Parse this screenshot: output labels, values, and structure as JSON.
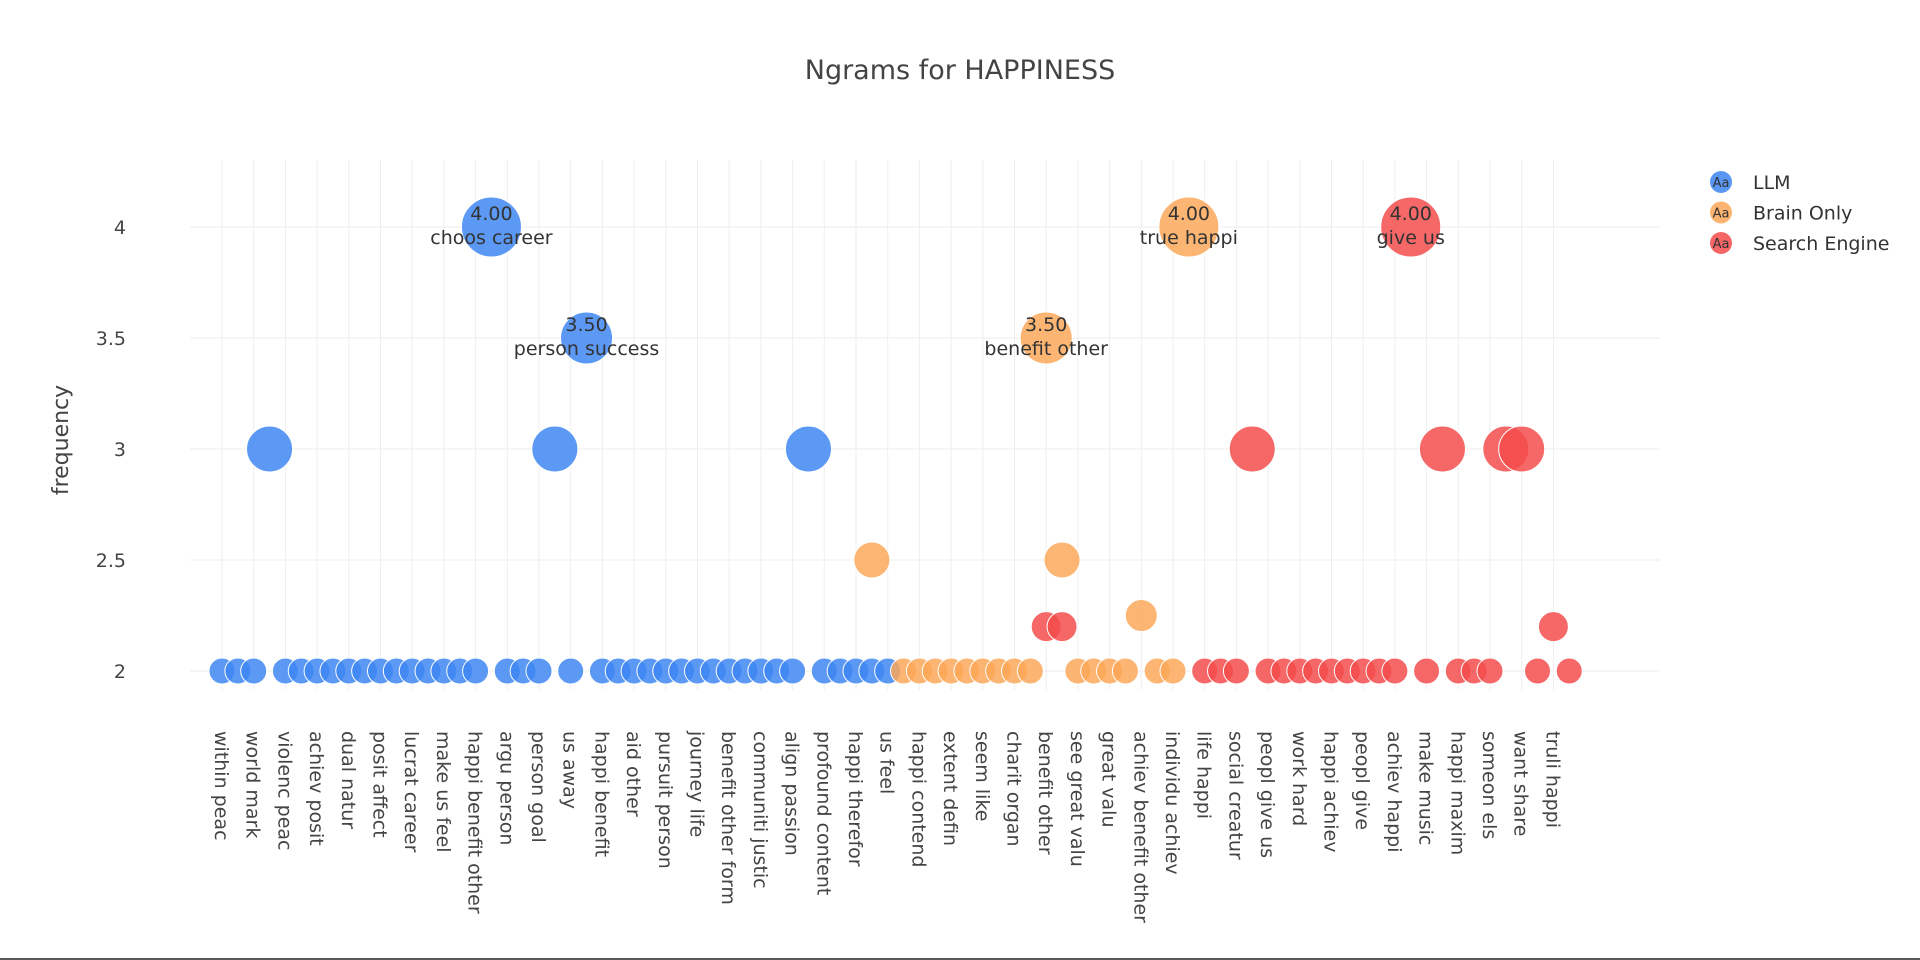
{
  "chart_data": {
    "type": "scatter",
    "title": "Ngrams for HAPPINESS",
    "xlabel": "",
    "ylabel": "frequency",
    "ylim": [
      1.8,
      4.3
    ],
    "yticks": [
      2,
      2.5,
      3,
      3.5,
      4
    ],
    "ytick_labels": [
      "2",
      "2.5",
      "3",
      "3.5",
      "4"
    ],
    "legend_position": "top-right",
    "legend_symbol": "Aa",
    "categories": [
      "within peac",
      "world mark",
      "violenc peac",
      "achiev posit",
      "dual natur",
      "posit affect",
      "lucrat career",
      "make us feel",
      "happi benefit other",
      "argu person",
      "person goal",
      "us away",
      "happi benefit",
      "aid other",
      "pursuit person",
      "journey life",
      "benefit other form",
      "communiti justic",
      "align passion",
      "profound content",
      "happi therefor",
      "us feel",
      "happi contend",
      "extent defin",
      "seem like",
      "charit organ",
      "benefit other",
      "see great valu",
      "great valu",
      "achiev benefit other",
      "individu achiev",
      "life happi",
      "social creatur",
      "peopl give us",
      "work hard",
      "happi achiev",
      "peopl give",
      "achiev happi",
      "make music",
      "happi maxim",
      "someon els",
      "want share",
      "truli happi"
    ],
    "series": [
      {
        "name": "LLM",
        "color": "#3d85f2",
        "points": [
          {
            "x": 0,
            "y": 2
          },
          {
            "x": 0.5,
            "y": 2
          },
          {
            "x": 1,
            "y": 2
          },
          {
            "x": 1.5,
            "y": 3
          },
          {
            "x": 2,
            "y": 2
          },
          {
            "x": 2.5,
            "y": 2
          },
          {
            "x": 3,
            "y": 2
          },
          {
            "x": 3.5,
            "y": 2
          },
          {
            "x": 4,
            "y": 2
          },
          {
            "x": 4.5,
            "y": 2
          },
          {
            "x": 5,
            "y": 2
          },
          {
            "x": 5.5,
            "y": 2
          },
          {
            "x": 6,
            "y": 2
          },
          {
            "x": 6.5,
            "y": 2
          },
          {
            "x": 7,
            "y": 2
          },
          {
            "x": 7.5,
            "y": 2
          },
          {
            "x": 8,
            "y": 2
          },
          {
            "x": 8.5,
            "y": 4,
            "label": "4.00",
            "name": "choos career"
          },
          {
            "x": 9,
            "y": 2
          },
          {
            "x": 9.5,
            "y": 2
          },
          {
            "x": 10,
            "y": 2
          },
          {
            "x": 10.5,
            "y": 3
          },
          {
            "x": 11,
            "y": 2
          },
          {
            "x": 11.5,
            "y": 3.5,
            "label": "3.50",
            "name": "person success"
          },
          {
            "x": 12,
            "y": 2
          },
          {
            "x": 12.5,
            "y": 2
          },
          {
            "x": 13,
            "y": 2
          },
          {
            "x": 13.5,
            "y": 2
          },
          {
            "x": 14,
            "y": 2
          },
          {
            "x": 14.5,
            "y": 2
          },
          {
            "x": 15,
            "y": 2
          },
          {
            "x": 15.5,
            "y": 2
          },
          {
            "x": 16,
            "y": 2
          },
          {
            "x": 16.5,
            "y": 2
          },
          {
            "x": 17,
            "y": 2
          },
          {
            "x": 17.5,
            "y": 2
          },
          {
            "x": 18,
            "y": 2
          },
          {
            "x": 18.5,
            "y": 3
          },
          {
            "x": 19,
            "y": 2
          },
          {
            "x": 19.5,
            "y": 2
          },
          {
            "x": 20,
            "y": 2
          },
          {
            "x": 20.5,
            "y": 2
          },
          {
            "x": 21,
            "y": 2
          }
        ]
      },
      {
        "name": "Brain Only",
        "color": "#fba757",
        "points": [
          {
            "x": 20.5,
            "y": 2.5
          },
          {
            "x": 21.5,
            "y": 2
          },
          {
            "x": 22,
            "y": 2
          },
          {
            "x": 22.5,
            "y": 2
          },
          {
            "x": 23,
            "y": 2
          },
          {
            "x": 23.5,
            "y": 2
          },
          {
            "x": 24,
            "y": 2
          },
          {
            "x": 24.5,
            "y": 2
          },
          {
            "x": 25,
            "y": 2
          },
          {
            "x": 25.5,
            "y": 2
          },
          {
            "x": 26,
            "y": 3.5,
            "label": "3.50",
            "name": "benefit other"
          },
          {
            "x": 26.5,
            "y": 2.5
          },
          {
            "x": 27,
            "y": 2
          },
          {
            "x": 27.5,
            "y": 2
          },
          {
            "x": 28,
            "y": 2
          },
          {
            "x": 28.5,
            "y": 2
          },
          {
            "x": 29,
            "y": 2.25
          },
          {
            "x": 29.5,
            "y": 2
          },
          {
            "x": 30,
            "y": 2
          },
          {
            "x": 30.5,
            "y": 4,
            "label": "4.00",
            "name": "true happi"
          }
        ]
      },
      {
        "name": "Search Engine",
        "color": "#f44b4b",
        "points": [
          {
            "x": 26,
            "y": 2.2
          },
          {
            "x": 26.5,
            "y": 2.2
          },
          {
            "x": 31,
            "y": 2
          },
          {
            "x": 31.5,
            "y": 2
          },
          {
            "x": 32,
            "y": 2
          },
          {
            "x": 32.5,
            "y": 3
          },
          {
            "x": 33,
            "y": 2
          },
          {
            "x": 33.5,
            "y": 2
          },
          {
            "x": 34,
            "y": 2
          },
          {
            "x": 34.5,
            "y": 2
          },
          {
            "x": 35,
            "y": 2
          },
          {
            "x": 35.5,
            "y": 2
          },
          {
            "x": 36,
            "y": 2
          },
          {
            "x": 36.5,
            "y": 2
          },
          {
            "x": 37,
            "y": 2
          },
          {
            "x": 37.5,
            "y": 4,
            "label": "4.00",
            "name": "give us"
          },
          {
            "x": 38,
            "y": 2
          },
          {
            "x": 38.5,
            "y": 3
          },
          {
            "x": 39,
            "y": 2
          },
          {
            "x": 39.5,
            "y": 2
          },
          {
            "x": 40,
            "y": 2
          },
          {
            "x": 40.5,
            "y": 3
          },
          {
            "x": 41,
            "y": 3
          },
          {
            "x": 41.5,
            "y": 2
          },
          {
            "x": 42,
            "y": 2.2
          },
          {
            "x": 42.5,
            "y": 2
          }
        ]
      }
    ]
  }
}
